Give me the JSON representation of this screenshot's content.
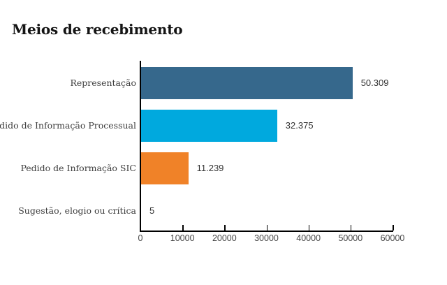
{
  "title": "Meios de recebimento",
  "chart_data": {
    "type": "bar",
    "orientation": "horizontal",
    "title": "Meios de recebimento",
    "categories": [
      "Representação",
      "Pedido de Informação Processual",
      "Pedido de Informação SIC",
      "Sugestão, elogio ou crítica"
    ],
    "values": [
      50309,
      32375,
      11239,
      5
    ],
    "value_labels": [
      "50.309",
      "32.375",
      "11.239",
      "5"
    ],
    "bar_colors": [
      "#36688C",
      "#00A9DE",
      "#F08228",
      "#36688C"
    ],
    "xlabel": "",
    "ylabel": "",
    "xlim": [
      0,
      60000
    ],
    "x_ticks": [
      0,
      10000,
      20000,
      30000,
      40000,
      50000,
      60000
    ],
    "x_tick_labels": [
      "0",
      "10000",
      "20000",
      "30000",
      "40000",
      "50000",
      "60000"
    ],
    "grid": false,
    "legend": false,
    "axis_color": "#000000",
    "title_color": "#141414",
    "category_label_color": "#3d3d3d",
    "value_label_color": "#333333",
    "tick_label_color": "#474747",
    "background_color": "#ffffff"
  }
}
